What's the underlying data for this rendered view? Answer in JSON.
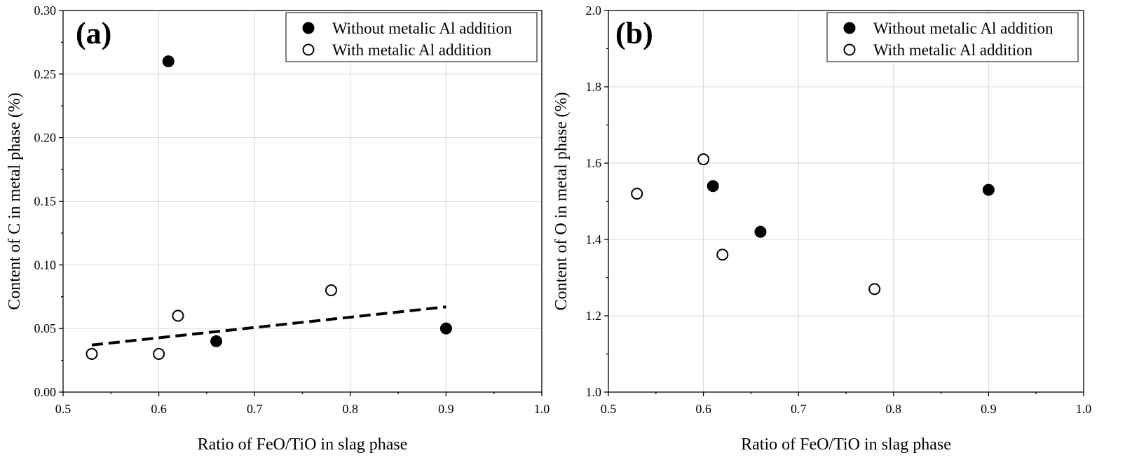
{
  "chart_data": [
    {
      "type": "scatter",
      "panel_label": "(a)",
      "xlabel": "Ratio of FeO/TiO in slag phase",
      "ylabel": "Content of C in metal phase (%)",
      "xlim": [
        0.5,
        1.0
      ],
      "ylim": [
        0.0,
        0.3
      ],
      "xticks": [
        0.5,
        0.6,
        0.7,
        0.8,
        0.9,
        1.0
      ],
      "yticks": [
        0.0,
        0.05,
        0.1,
        0.15,
        0.2,
        0.25,
        0.3
      ],
      "xtick_labels": [
        "0.5",
        "0.6",
        "0.7",
        "0.8",
        "0.9",
        "1.0"
      ],
      "ytick_labels": [
        "0.00",
        "0.05",
        "0.10",
        "0.15",
        "0.20",
        "0.25",
        "0.30"
      ],
      "grid": true,
      "legend_position": "top-right",
      "series": [
        {
          "name": "Without metalic Al addition",
          "marker": "filled-circle",
          "color": "#000000",
          "x": [
            0.61,
            0.66,
            0.9
          ],
          "y": [
            0.26,
            0.04,
            0.05
          ]
        },
        {
          "name": "With metalic Al addition",
          "marker": "open-circle",
          "color": "#000000",
          "x": [
            0.53,
            0.6,
            0.62,
            0.78
          ],
          "y": [
            0.03,
            0.03,
            0.06,
            0.08
          ]
        }
      ],
      "trendline": {
        "style": "dashed",
        "color": "#000000",
        "x": [
          0.53,
          0.9
        ],
        "y": [
          0.037,
          0.067
        ]
      }
    },
    {
      "type": "scatter",
      "panel_label": "(b)",
      "xlabel": "Ratio of FeO/TiO in slag phase",
      "ylabel": "Content of O in metal phase (%)",
      "xlim": [
        0.5,
        1.0
      ],
      "ylim": [
        1.0,
        2.0
      ],
      "xticks": [
        0.5,
        0.6,
        0.7,
        0.8,
        0.9,
        1.0
      ],
      "yticks": [
        1.0,
        1.2,
        1.4,
        1.6,
        1.8,
        2.0
      ],
      "xtick_labels": [
        "0.5",
        "0.6",
        "0.7",
        "0.8",
        "0.9",
        "1.0"
      ],
      "ytick_labels": [
        "1.0",
        "1.2",
        "1.4",
        "1.6",
        "1.8",
        "2.0"
      ],
      "grid": true,
      "legend_position": "top-right",
      "series": [
        {
          "name": "Without metalic Al addition",
          "marker": "filled-circle",
          "color": "#000000",
          "x": [
            0.61,
            0.66,
            0.9
          ],
          "y": [
            1.54,
            1.42,
            1.53
          ]
        },
        {
          "name": "With metalic Al addition",
          "marker": "open-circle",
          "color": "#000000",
          "x": [
            0.53,
            0.6,
            0.62,
            0.78
          ],
          "y": [
            1.52,
            1.61,
            1.36,
            1.27
          ]
        }
      ]
    }
  ]
}
